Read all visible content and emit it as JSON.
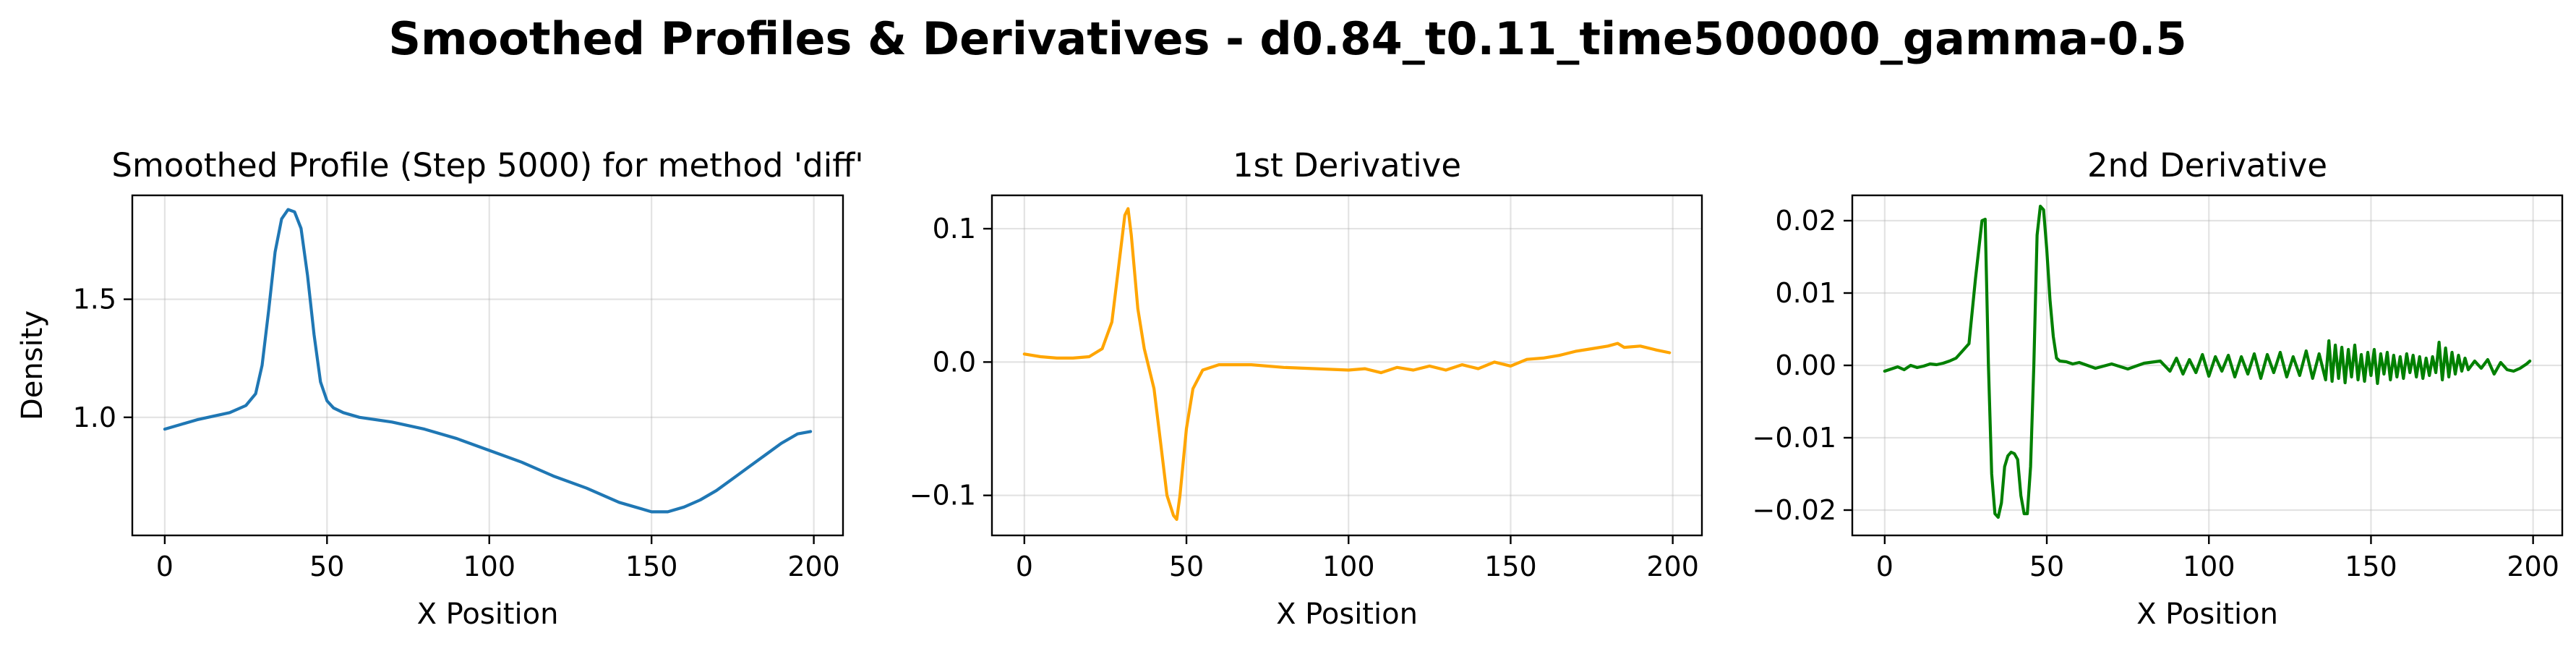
{
  "suptitle": "Smoothed Profiles & Derivatives - d0.84_t0.11_time500000_gamma-0.5",
  "chart_data": [
    {
      "type": "line",
      "title": "Smoothed Profile (Step 5000) for method 'diff'",
      "xlabel": "X Position",
      "ylabel": "Density",
      "xlim": [
        -10,
        209
      ],
      "ylim": [
        0.5,
        1.94
      ],
      "xticks": [
        0,
        50,
        100,
        150,
        200
      ],
      "yticks": [
        1.0,
        1.5
      ],
      "ytick_labels": [
        "1.0",
        "1.5"
      ],
      "grid": true,
      "color": "#1f77b4",
      "x": [
        0,
        5,
        10,
        15,
        20,
        25,
        28,
        30,
        32,
        34,
        36,
        38,
        40,
        42,
        44,
        46,
        48,
        50,
        52,
        55,
        60,
        70,
        80,
        90,
        100,
        110,
        120,
        130,
        140,
        145,
        150,
        155,
        160,
        165,
        170,
        175,
        180,
        185,
        190,
        195,
        199
      ],
      "y": [
        0.95,
        0.97,
        0.99,
        1.005,
        1.02,
        1.05,
        1.1,
        1.22,
        1.45,
        1.7,
        1.84,
        1.88,
        1.87,
        1.8,
        1.6,
        1.35,
        1.15,
        1.07,
        1.04,
        1.02,
        1.0,
        0.98,
        0.95,
        0.91,
        0.86,
        0.81,
        0.75,
        0.7,
        0.64,
        0.62,
        0.6,
        0.6,
        0.62,
        0.65,
        0.69,
        0.74,
        0.79,
        0.84,
        0.89,
        0.93,
        0.94
      ]
    },
    {
      "type": "line",
      "title": "1st Derivative",
      "xlabel": "X Position",
      "ylabel": "",
      "xlim": [
        -10,
        209
      ],
      "ylim": [
        -0.13,
        0.125
      ],
      "xticks": [
        0,
        50,
        100,
        150,
        200
      ],
      "yticks": [
        -0.1,
        0.0,
        0.1
      ],
      "ytick_labels": [
        "−0.1",
        "0.0",
        "0.1"
      ],
      "grid": true,
      "color": "#ffa500",
      "x": [
        0,
        5,
        10,
        15,
        20,
        24,
        27,
        29,
        31,
        32,
        33,
        35,
        37,
        40,
        42,
        44,
        46,
        47,
        48,
        50,
        52,
        55,
        60,
        70,
        80,
        90,
        100,
        105,
        110,
        115,
        120,
        125,
        130,
        135,
        140,
        145,
        150,
        155,
        160,
        165,
        170,
        175,
        180,
        183,
        185,
        190,
        195,
        199
      ],
      "y": [
        0.006,
        0.004,
        0.003,
        0.003,
        0.004,
        0.01,
        0.03,
        0.07,
        0.11,
        0.115,
        0.095,
        0.04,
        0.01,
        -0.02,
        -0.06,
        -0.1,
        -0.115,
        -0.118,
        -0.1,
        -0.05,
        -0.02,
        -0.006,
        -0.002,
        -0.002,
        -0.004,
        -0.005,
        -0.006,
        -0.005,
        -0.008,
        -0.004,
        -0.006,
        -0.003,
        -0.006,
        -0.002,
        -0.005,
        0.0,
        -0.003,
        0.002,
        0.003,
        0.005,
        0.008,
        0.01,
        0.012,
        0.014,
        0.011,
        0.012,
        0.009,
        0.007
      ]
    },
    {
      "type": "line",
      "title": "2nd Derivative",
      "xlabel": "X Position",
      "ylabel": "",
      "xlim": [
        -10,
        209
      ],
      "ylim": [
        -0.0235,
        0.0235
      ],
      "xticks": [
        0,
        50,
        100,
        150,
        200
      ],
      "yticks": [
        -0.02,
        -0.01,
        0.0,
        0.01,
        0.02
      ],
      "ytick_labels": [
        "−0.02",
        "−0.01",
        "0.00",
        "0.01",
        "0.02"
      ],
      "grid": true,
      "color": "#008000",
      "x": [
        0,
        2,
        4,
        6,
        8,
        10,
        12,
        14,
        16,
        18,
        20,
        22,
        24,
        26,
        28,
        30,
        31,
        32,
        33,
        34,
        35,
        36,
        37,
        38,
        39,
        40,
        41,
        42,
        43,
        44,
        45,
        46,
        47,
        48,
        49,
        50,
        51,
        52,
        53,
        54,
        56,
        58,
        60,
        65,
        70,
        75,
        80,
        85,
        88,
        90,
        92,
        94,
        96,
        98,
        100,
        102,
        104,
        106,
        108,
        110,
        112,
        114,
        116,
        118,
        120,
        122,
        124,
        126,
        128,
        130,
        132,
        134,
        136,
        137,
        138,
        139,
        140,
        141,
        142,
        143,
        144,
        145,
        146,
        147,
        148,
        149,
        150,
        151,
        152,
        153,
        154,
        155,
        156,
        157,
        158,
        159,
        160,
        161,
        162,
        163,
        164,
        165,
        166,
        167,
        168,
        169,
        170,
        171,
        172,
        173,
        174,
        175,
        176,
        177,
        178,
        179,
        180,
        182,
        184,
        186,
        188,
        190,
        192,
        194,
        196,
        198,
        199
      ],
      "y": [
        -0.0008,
        -0.0005,
        -0.0002,
        -0.0006,
        0.0,
        -0.0003,
        -0.0001,
        0.0002,
        0.0001,
        0.0003,
        0.0006,
        0.001,
        0.002,
        0.003,
        0.012,
        0.02,
        0.0202,
        0.0,
        -0.015,
        -0.0205,
        -0.021,
        -0.019,
        -0.014,
        -0.0125,
        -0.012,
        -0.0122,
        -0.013,
        -0.018,
        -0.0205,
        -0.0205,
        -0.014,
        0.0,
        0.018,
        0.022,
        0.0215,
        0.016,
        0.009,
        0.004,
        0.001,
        0.0006,
        0.0005,
        0.0002,
        0.0004,
        -0.0004,
        0.0002,
        -0.0005,
        0.0003,
        0.0006,
        -0.0008,
        0.001,
        -0.0012,
        0.0008,
        -0.001,
        0.0015,
        -0.0015,
        0.0012,
        -0.0008,
        0.0014,
        -0.0016,
        0.0012,
        -0.0012,
        0.0016,
        -0.0018,
        0.0015,
        -0.001,
        0.0018,
        -0.0016,
        0.0012,
        -0.0014,
        0.002,
        -0.0018,
        0.0016,
        -0.002,
        0.0034,
        -0.0022,
        0.0028,
        -0.0018,
        0.0025,
        -0.0024,
        0.0022,
        -0.0016,
        0.0028,
        -0.002,
        0.0015,
        -0.0022,
        0.0018,
        -0.0014,
        0.0022,
        -0.0025,
        0.0016,
        -0.0012,
        0.0018,
        -0.002,
        0.0014,
        -0.0016,
        0.0012,
        -0.0018,
        0.0016,
        -0.001,
        0.0014,
        -0.0016,
        0.0012,
        -0.0018,
        0.001,
        -0.0014,
        0.0012,
        -0.001,
        0.0032,
        -0.002,
        0.0024,
        -0.0016,
        0.0018,
        -0.0012,
        0.0014,
        -0.0008,
        0.001,
        -0.0006,
        0.0006,
        -0.0004,
        0.0008,
        -0.0012,
        0.0004,
        -0.0006,
        -0.0008,
        -0.0004,
        0.0002,
        0.0006
      ]
    }
  ]
}
